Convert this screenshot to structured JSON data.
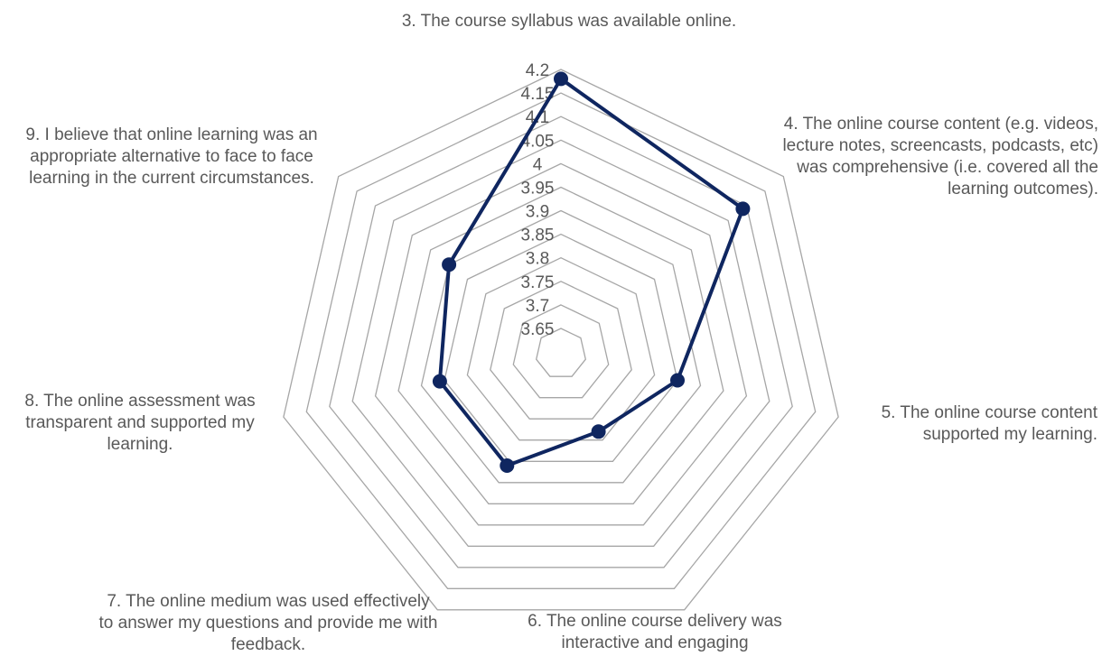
{
  "chart_data": {
    "type": "radar",
    "categories": [
      "3.  The course syllabus was available online.",
      "4.  The online course content (e.g. videos, lecture notes, screencasts, podcasts, etc) was comprehensive (i.e. covered all the learning outcomes).",
      "5.  The online course content supported my learning.",
      "6.  The online course delivery was interactive and engaging",
      "7.  The online medium was used effectively to answer my questions and provide me with feedback.",
      "8.  The online assessment was transparent and supported my learning.",
      "9.  I believe that online learning was an appropriate alternative to face to face learning in the current circumstances."
    ],
    "series": [
      {
        "values": [
          4.18,
          4.09,
          3.85,
          3.78,
          3.86,
          3.86,
          3.9
        ]
      }
    ],
    "rlim": [
      3.65,
      4.2
    ],
    "ticks": [
      "3.65",
      "3.7",
      "3.75",
      "3.8",
      "3.85",
      "3.9",
      "3.95",
      "4",
      "4.05",
      "4.1",
      "4.15",
      "4.2"
    ],
    "grid": true,
    "legend": "none",
    "colors": {
      "series": "#0f2660",
      "grid": "#a6a6a6",
      "text": "#595959"
    }
  }
}
